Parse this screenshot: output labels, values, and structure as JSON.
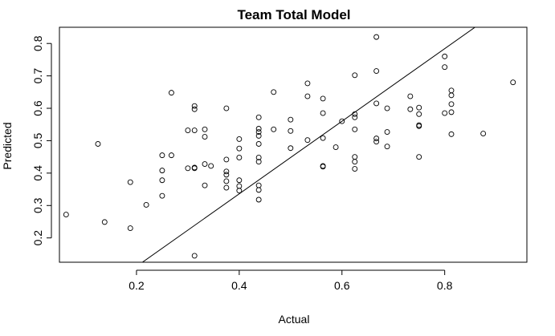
{
  "chart_data": {
    "type": "scatter",
    "title": "Team Total Model",
    "xlabel": "Actual",
    "ylabel": "Predicted",
    "xlim": [
      0.05,
      0.96
    ],
    "ylim": [
      0.125,
      0.85
    ],
    "x_ticks": [
      0.2,
      0.4,
      0.6,
      0.8
    ],
    "x_tick_labels": [
      "0.2",
      "0.4",
      "0.6",
      "0.8"
    ],
    "y_ticks": [
      0.2,
      0.3,
      0.4,
      0.5,
      0.6,
      0.7,
      0.8
    ],
    "y_tick_labels": [
      "0.2",
      "0.3",
      "0.4",
      "0.5",
      "0.6",
      "0.7",
      "0.8"
    ],
    "grid": false,
    "point_style": "open-circle",
    "fit_line": {
      "intercept": -0.112,
      "slope": 1.12
    },
    "points": [
      {
        "x": 0.063,
        "y": 0.272
      },
      {
        "x": 0.125,
        "y": 0.49
      },
      {
        "x": 0.138,
        "y": 0.249
      },
      {
        "x": 0.188,
        "y": 0.372
      },
      {
        "x": 0.188,
        "y": 0.23
      },
      {
        "x": 0.219,
        "y": 0.302
      },
      {
        "x": 0.25,
        "y": 0.455
      },
      {
        "x": 0.25,
        "y": 0.408
      },
      {
        "x": 0.25,
        "y": 0.378
      },
      {
        "x": 0.25,
        "y": 0.33
      },
      {
        "x": 0.268,
        "y": 0.455
      },
      {
        "x": 0.268,
        "y": 0.648
      },
      {
        "x": 0.3,
        "y": 0.532
      },
      {
        "x": 0.3,
        "y": 0.415
      },
      {
        "x": 0.313,
        "y": 0.607
      },
      {
        "x": 0.313,
        "y": 0.597
      },
      {
        "x": 0.313,
        "y": 0.532
      },
      {
        "x": 0.313,
        "y": 0.417
      },
      {
        "x": 0.313,
        "y": 0.415
      },
      {
        "x": 0.313,
        "y": 0.145
      },
      {
        "x": 0.333,
        "y": 0.535
      },
      {
        "x": 0.333,
        "y": 0.512
      },
      {
        "x": 0.333,
        "y": 0.428
      },
      {
        "x": 0.333,
        "y": 0.362
      },
      {
        "x": 0.345,
        "y": 0.422
      },
      {
        "x": 0.375,
        "y": 0.6
      },
      {
        "x": 0.375,
        "y": 0.442
      },
      {
        "x": 0.375,
        "y": 0.405
      },
      {
        "x": 0.375,
        "y": 0.395
      },
      {
        "x": 0.375,
        "y": 0.375
      },
      {
        "x": 0.375,
        "y": 0.355
      },
      {
        "x": 0.4,
        "y": 0.505
      },
      {
        "x": 0.4,
        "y": 0.476
      },
      {
        "x": 0.4,
        "y": 0.448
      },
      {
        "x": 0.4,
        "y": 0.378
      },
      {
        "x": 0.4,
        "y": 0.36
      },
      {
        "x": 0.4,
        "y": 0.346
      },
      {
        "x": 0.438,
        "y": 0.572
      },
      {
        "x": 0.438,
        "y": 0.537
      },
      {
        "x": 0.438,
        "y": 0.527
      },
      {
        "x": 0.438,
        "y": 0.515
      },
      {
        "x": 0.438,
        "y": 0.49
      },
      {
        "x": 0.438,
        "y": 0.448
      },
      {
        "x": 0.438,
        "y": 0.435
      },
      {
        "x": 0.438,
        "y": 0.362
      },
      {
        "x": 0.438,
        "y": 0.348
      },
      {
        "x": 0.438,
        "y": 0.318
      },
      {
        "x": 0.467,
        "y": 0.65
      },
      {
        "x": 0.467,
        "y": 0.535
      },
      {
        "x": 0.5,
        "y": 0.565
      },
      {
        "x": 0.5,
        "y": 0.53
      },
      {
        "x": 0.5,
        "y": 0.477
      },
      {
        "x": 0.533,
        "y": 0.677
      },
      {
        "x": 0.533,
        "y": 0.637
      },
      {
        "x": 0.533,
        "y": 0.502
      },
      {
        "x": 0.563,
        "y": 0.63
      },
      {
        "x": 0.563,
        "y": 0.585
      },
      {
        "x": 0.563,
        "y": 0.508
      },
      {
        "x": 0.563,
        "y": 0.422
      },
      {
        "x": 0.563,
        "y": 0.42
      },
      {
        "x": 0.588,
        "y": 0.48
      },
      {
        "x": 0.6,
        "y": 0.56
      },
      {
        "x": 0.625,
        "y": 0.702
      },
      {
        "x": 0.625,
        "y": 0.582
      },
      {
        "x": 0.625,
        "y": 0.572
      },
      {
        "x": 0.625,
        "y": 0.535
      },
      {
        "x": 0.625,
        "y": 0.45
      },
      {
        "x": 0.625,
        "y": 0.435
      },
      {
        "x": 0.625,
        "y": 0.413
      },
      {
        "x": 0.667,
        "y": 0.82
      },
      {
        "x": 0.667,
        "y": 0.715
      },
      {
        "x": 0.667,
        "y": 0.615
      },
      {
        "x": 0.667,
        "y": 0.507
      },
      {
        "x": 0.667,
        "y": 0.497
      },
      {
        "x": 0.688,
        "y": 0.6
      },
      {
        "x": 0.688,
        "y": 0.527
      },
      {
        "x": 0.688,
        "y": 0.482
      },
      {
        "x": 0.733,
        "y": 0.637
      },
      {
        "x": 0.733,
        "y": 0.597
      },
      {
        "x": 0.75,
        "y": 0.602
      },
      {
        "x": 0.75,
        "y": 0.582
      },
      {
        "x": 0.75,
        "y": 0.548
      },
      {
        "x": 0.75,
        "y": 0.545
      },
      {
        "x": 0.75,
        "y": 0.45
      },
      {
        "x": 0.8,
        "y": 0.76
      },
      {
        "x": 0.8,
        "y": 0.727
      },
      {
        "x": 0.8,
        "y": 0.585
      },
      {
        "x": 0.813,
        "y": 0.655
      },
      {
        "x": 0.813,
        "y": 0.64
      },
      {
        "x": 0.813,
        "y": 0.613
      },
      {
        "x": 0.813,
        "y": 0.588
      },
      {
        "x": 0.813,
        "y": 0.52
      },
      {
        "x": 0.875,
        "y": 0.522
      },
      {
        "x": 0.933,
        "y": 0.68
      }
    ]
  }
}
